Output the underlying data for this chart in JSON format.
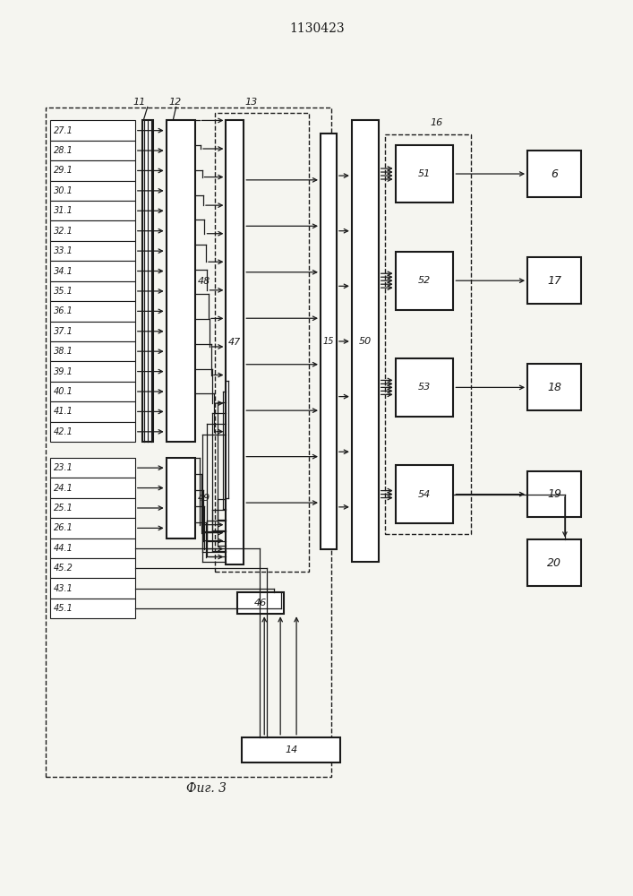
{
  "title": "1130423",
  "fig_caption": "Фиг. 3",
  "bg_color": "#f5f5f0",
  "line_color": "#1a1a1a",
  "input_labels_g1": [
    "27.1",
    "28.1",
    "29.1",
    "30.1",
    "31.1",
    "32.1",
    "33.1",
    "34.1",
    "35.1",
    "36.1",
    "37.1",
    "38.1",
    "39.1",
    "40.1",
    "41.1",
    "42.1"
  ],
  "input_labels_g2": [
    "23.1",
    "24.1",
    "25.1",
    "26.1"
  ],
  "input_labels_g3": [
    "44.1",
    "45.2",
    "43.1",
    "45.1"
  ],
  "label_11": "11",
  "label_12": "12",
  "label_13": "13",
  "label_14": "14",
  "label_15": "15",
  "label_16": "16",
  "label_46": "46",
  "label_47": "47",
  "label_48": "48",
  "label_49": "49",
  "label_50": "50",
  "sub_labels": [
    "51",
    "52",
    "53",
    "54"
  ],
  "right_labels": [
    "6",
    "17",
    "18",
    "19"
  ],
  "label_20": "20"
}
